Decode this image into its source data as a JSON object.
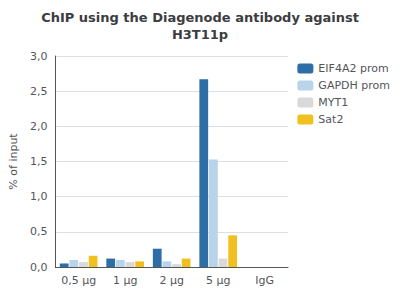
{
  "chart_data": {
    "type": "bar",
    "title": "ChIP using the Diagenode antibody against\nH3T11p",
    "ylabel": "% of input",
    "categories": [
      "0,5 μg",
      "1 μg",
      "2 μg",
      "5 μg",
      "IgG"
    ],
    "series": [
      {
        "name": "EIF4A2 prom",
        "color": "#2E6EA6",
        "values": [
          0.05,
          0.12,
          0.26,
          2.67,
          0.0
        ]
      },
      {
        "name": "GAPDH prom",
        "color": "#B8D4EA",
        "values": [
          0.1,
          0.1,
          0.08,
          1.53,
          0.0
        ]
      },
      {
        "name": "MYT1",
        "color": "#D9D9D9",
        "values": [
          0.07,
          0.07,
          0.04,
          0.12,
          0.0
        ]
      },
      {
        "name": "Sat2",
        "color": "#F0C020",
        "values": [
          0.16,
          0.08,
          0.12,
          0.45,
          0.0
        ]
      }
    ],
    "ylim": [
      0,
      3.0
    ],
    "yticks": [
      {
        "value": 0.0,
        "label": "0,0"
      },
      {
        "value": 0.5,
        "label": "0,5"
      },
      {
        "value": 1.0,
        "label": "1,0"
      },
      {
        "value": 1.5,
        "label": "1,5"
      },
      {
        "value": 2.0,
        "label": "2,0"
      },
      {
        "value": 2.5,
        "label": "2,5"
      },
      {
        "value": 3.0,
        "label": "3,0"
      }
    ],
    "grid": true,
    "legend": "upper right"
  }
}
